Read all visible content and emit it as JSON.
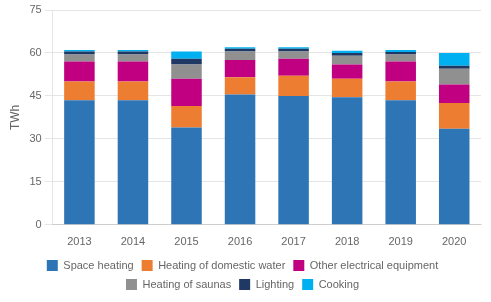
{
  "chart_data": {
    "type": "bar",
    "stacked": true,
    "categories": [
      "2013",
      "2014",
      "2015",
      "2016",
      "2017",
      "2018",
      "2019",
      "2020"
    ],
    "series": [
      {
        "name": "Space heating",
        "color": "#2e75b6",
        "values": [
          43.5,
          43.5,
          34.0,
          45.5,
          45.0,
          44.5,
          43.5,
          33.5
        ]
      },
      {
        "name": "Heating of domestic water",
        "color": "#ed7d31",
        "values": [
          6.5,
          6.5,
          7.5,
          6.0,
          7.0,
          6.5,
          6.5,
          9.0
        ]
      },
      {
        "name": "Other electrical equipment",
        "color": "#c00080",
        "values": [
          7.0,
          7.0,
          9.5,
          6.0,
          6.0,
          5.0,
          7.0,
          6.5
        ]
      },
      {
        "name": "Heating of saunas",
        "color": "#909090",
        "values": [
          2.5,
          2.5,
          5.0,
          3.0,
          2.5,
          3.0,
          2.5,
          5.5
        ]
      },
      {
        "name": "Lighting",
        "color": "#1f3864",
        "values": [
          1.0,
          1.0,
          2.0,
          1.0,
          1.0,
          1.0,
          0.8,
          1.0
        ]
      },
      {
        "name": "Cooking",
        "color": "#00b0f0",
        "values": [
          0.5,
          0.5,
          2.5,
          0.5,
          0.5,
          0.8,
          0.7,
          4.5
        ]
      }
    ],
    "ylabel": "TWh",
    "ylim": [
      0,
      75
    ],
    "yticks": [
      0,
      15,
      30,
      45,
      60,
      75
    ],
    "grid": true,
    "legend": "bottom"
  }
}
